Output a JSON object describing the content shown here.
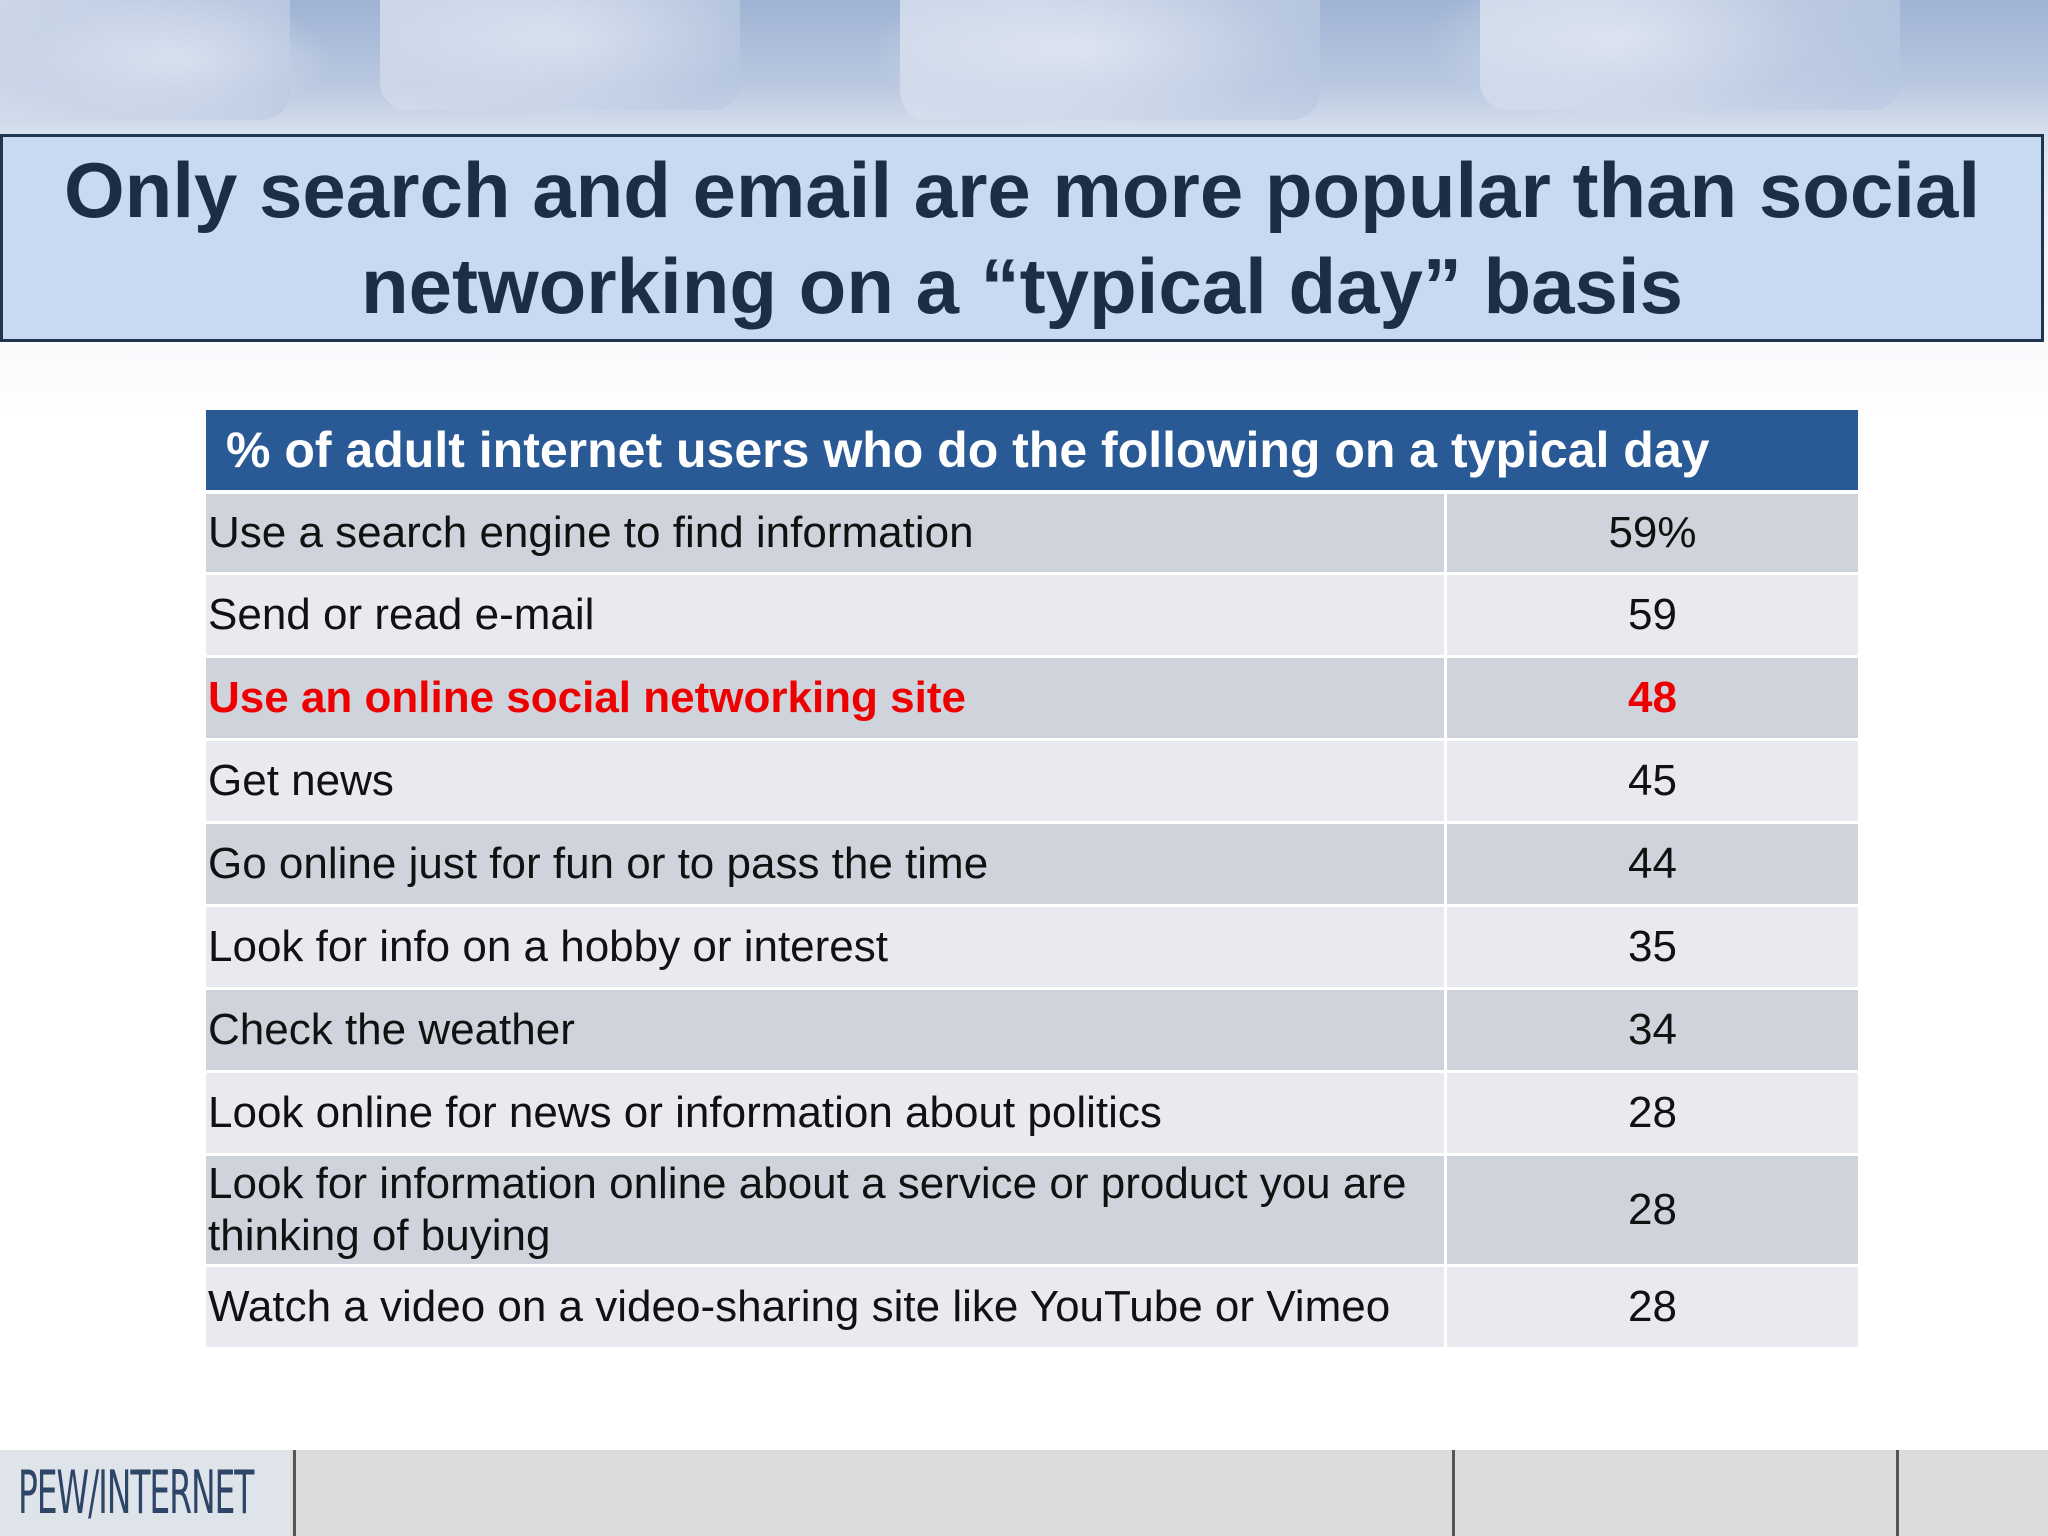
{
  "slide": {
    "title": "Only search and email are more popular than social networking on a “typical day” basis"
  },
  "chart_data": {
    "type": "table",
    "title": "% of adult internet users who do the following on a typical day",
    "rows": [
      {
        "label": "Use a search engine to find information",
        "value": "59%"
      },
      {
        "label": "Send or read e-mail",
        "value": "59"
      },
      {
        "label": "Use an online social networking site",
        "value": "48",
        "highlight": true
      },
      {
        "label": "Get news",
        "value": "45"
      },
      {
        "label": "Go online just for fun or to pass the time",
        "value": "44"
      },
      {
        "label": "Look for info on a hobby or interest",
        "value": "35"
      },
      {
        "label": "Check the weather",
        "value": "34"
      },
      {
        "label": "Look online for news or information about politics",
        "value": "28"
      },
      {
        "label": "Look for information online about a service or product you are thinking of buying",
        "value": "28"
      },
      {
        "label": "Watch a video on a video-sharing site like YouTube or Vimeo",
        "value": "28"
      }
    ]
  },
  "footer": {
    "logo_text": "PEW/INTERNET"
  },
  "colors": {
    "title_bg": "#c7daf2",
    "header_bg": "#2a5a96",
    "highlight": "#ee0000"
  }
}
